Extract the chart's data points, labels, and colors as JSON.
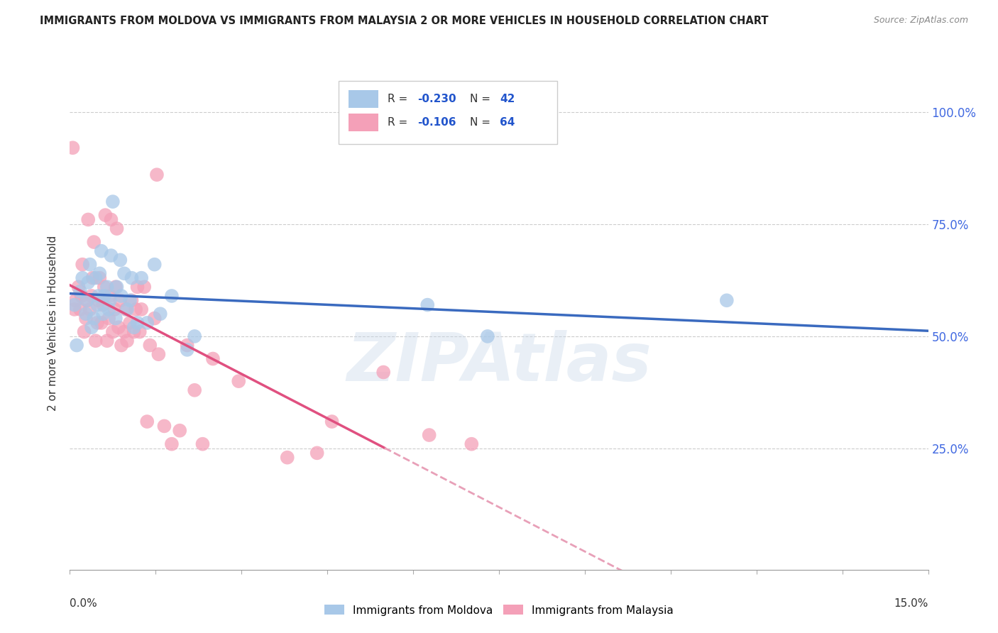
{
  "title": "IMMIGRANTS FROM MOLDOVA VS IMMIGRANTS FROM MALAYSIA 2 OR MORE VEHICLES IN HOUSEHOLD CORRELATION CHART",
  "source": "Source: ZipAtlas.com",
  "ylabel": "2 or more Vehicles in Household",
  "ytick_labels": [
    "100.0%",
    "75.0%",
    "50.0%",
    "25.0%"
  ],
  "ytick_values": [
    1.0,
    0.75,
    0.5,
    0.25
  ],
  "xlim": [
    0.0,
    0.15
  ],
  "ylim": [
    -0.02,
    1.08
  ],
  "watermark": "ZIPAtlas",
  "blue_color": "#a8c8e8",
  "blue_line_color": "#3a6abf",
  "pink_color": "#f4a0b8",
  "pink_line_color": "#e05080",
  "pink_dash_color": "#e8a0b8",
  "moldova_x": [
    0.0008,
    0.0012,
    0.0018,
    0.0022,
    0.0028,
    0.003,
    0.0032,
    0.0035,
    0.0038,
    0.0042,
    0.0045,
    0.0048,
    0.005,
    0.0052,
    0.0055,
    0.0058,
    0.006,
    0.0065,
    0.0068,
    0.007,
    0.0072,
    0.0075,
    0.008,
    0.0082,
    0.0088,
    0.009,
    0.0095,
    0.01,
    0.0105,
    0.0108,
    0.0112,
    0.0118,
    0.0125,
    0.0135,
    0.0148,
    0.0158,
    0.0178,
    0.0205,
    0.0218,
    0.0625,
    0.073,
    0.1148
  ],
  "moldova_y": [
    0.57,
    0.48,
    0.6,
    0.63,
    0.55,
    0.58,
    0.62,
    0.66,
    0.52,
    0.54,
    0.63,
    0.57,
    0.59,
    0.64,
    0.69,
    0.55,
    0.59,
    0.61,
    0.56,
    0.58,
    0.68,
    0.8,
    0.54,
    0.61,
    0.67,
    0.59,
    0.64,
    0.56,
    0.58,
    0.63,
    0.52,
    0.53,
    0.63,
    0.53,
    0.66,
    0.55,
    0.59,
    0.47,
    0.5,
    0.57,
    0.5,
    0.58
  ],
  "malaysia_x": [
    0.0005,
    0.0008,
    0.001,
    0.0015,
    0.0018,
    0.002,
    0.0022,
    0.0025,
    0.0028,
    0.003,
    0.0032,
    0.0035,
    0.0038,
    0.004,
    0.0042,
    0.0045,
    0.0048,
    0.005,
    0.0052,
    0.0055,
    0.0058,
    0.006,
    0.0062,
    0.0065,
    0.0068,
    0.007,
    0.0072,
    0.0075,
    0.0078,
    0.008,
    0.0082,
    0.0085,
    0.0088,
    0.009,
    0.0095,
    0.0098,
    0.01,
    0.0105,
    0.0108,
    0.0112,
    0.0115,
    0.0118,
    0.0122,
    0.0125,
    0.013,
    0.0135,
    0.014,
    0.0148,
    0.0155,
    0.0165,
    0.0178,
    0.0192,
    0.0205,
    0.0218,
    0.0232,
    0.025,
    0.0295,
    0.038,
    0.0432,
    0.0458,
    0.0548,
    0.0628,
    0.0702,
    0.0152
  ],
  "malaysia_y": [
    0.92,
    0.56,
    0.58,
    0.61,
    0.56,
    0.59,
    0.66,
    0.51,
    0.54,
    0.58,
    0.76,
    0.56,
    0.59,
    0.63,
    0.71,
    0.49,
    0.53,
    0.58,
    0.63,
    0.53,
    0.57,
    0.61,
    0.77,
    0.49,
    0.54,
    0.59,
    0.76,
    0.51,
    0.56,
    0.61,
    0.74,
    0.52,
    0.58,
    0.48,
    0.51,
    0.56,
    0.49,
    0.53,
    0.58,
    0.51,
    0.56,
    0.61,
    0.51,
    0.56,
    0.61,
    0.31,
    0.48,
    0.54,
    0.46,
    0.3,
    0.26,
    0.29,
    0.48,
    0.38,
    0.26,
    0.45,
    0.4,
    0.23,
    0.24,
    0.31,
    0.42,
    0.28,
    0.26,
    0.86
  ]
}
